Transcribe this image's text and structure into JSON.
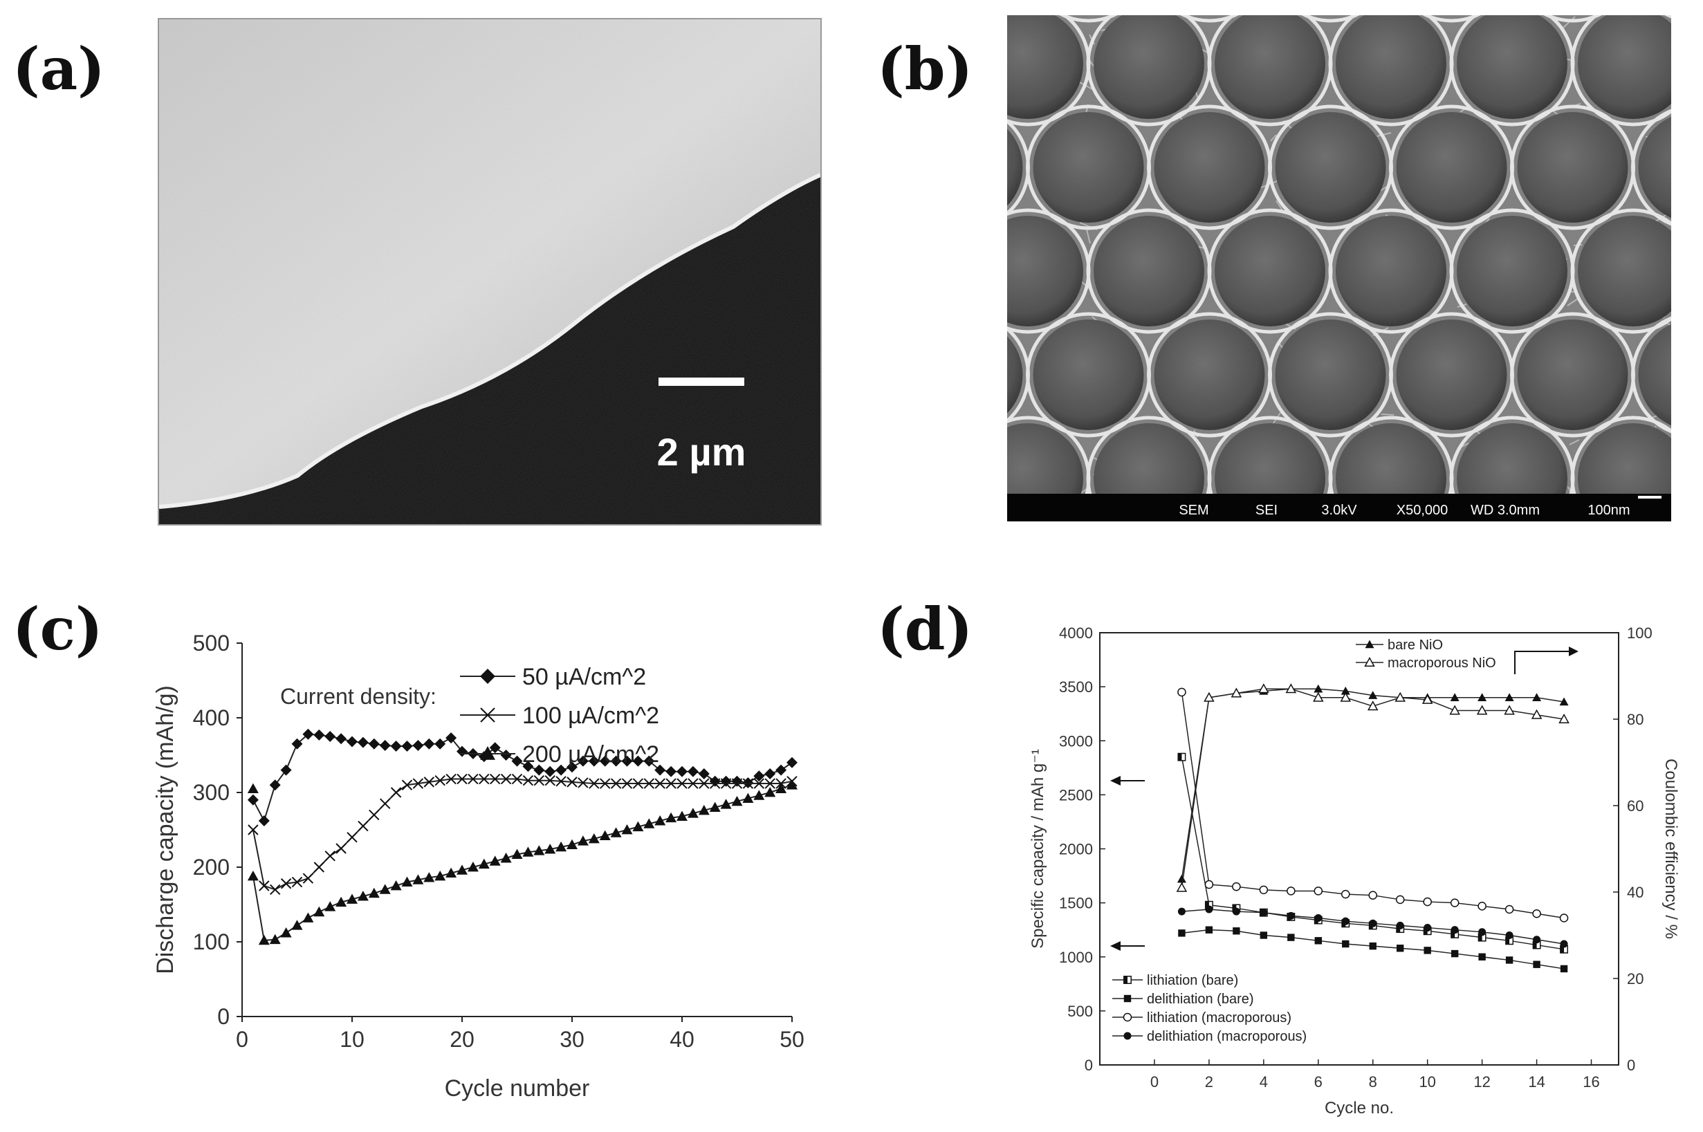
{
  "panels": {
    "a": {
      "label": "(a)",
      "scale_bar": "2 µm"
    },
    "b": {
      "label": "(b)",
      "info_bar": [
        "SEM",
        "SEI",
        "3.0kV",
        "X50,000",
        "WD 3.0mm",
        "100nm"
      ]
    },
    "c": {
      "label": "(c)"
    },
    "d": {
      "label": "(d)"
    }
  },
  "chart_data": [
    {
      "type": "line",
      "panel": "(c)",
      "title": "",
      "xlabel": "Cycle number",
      "ylabel": "Discharge capacity (mAh/g)",
      "xlim": [
        0,
        50
      ],
      "ylim": [
        0,
        500
      ],
      "xticks": [
        0,
        10,
        20,
        30,
        40,
        50
      ],
      "yticks": [
        0,
        100,
        200,
        300,
        400,
        500
      ],
      "grid": false,
      "legend_title": "Current density:",
      "legend_position": "top-right",
      "series": [
        {
          "name": "50 µA/cm^2",
          "marker": "diamond",
          "x": [
            1,
            2,
            3,
            4,
            5,
            6,
            7,
            8,
            9,
            10,
            11,
            12,
            13,
            14,
            15,
            16,
            17,
            18,
            19,
            20,
            21,
            22,
            23,
            24,
            25,
            26,
            27,
            28,
            29,
            30,
            31,
            32,
            33,
            34,
            35,
            36,
            37,
            38,
            39,
            40,
            41,
            42,
            43,
            44,
            45,
            46,
            47,
            48,
            49,
            50
          ],
          "y": [
            290,
            262,
            310,
            330,
            365,
            378,
            377,
            375,
            372,
            368,
            367,
            365,
            363,
            362,
            362,
            363,
            365,
            365,
            373,
            355,
            352,
            348,
            360,
            350,
            342,
            335,
            330,
            328,
            330,
            334,
            342,
            342,
            342,
            342,
            342,
            342,
            342,
            330,
            328,
            328,
            328,
            325,
            315,
            315,
            315,
            313,
            322,
            325,
            330,
            340
          ]
        },
        {
          "name": "100 µA/cm^2",
          "marker": "x",
          "x": [
            1,
            2,
            3,
            4,
            5,
            6,
            7,
            8,
            9,
            10,
            11,
            12,
            13,
            14,
            15,
            16,
            17,
            18,
            19,
            20,
            21,
            22,
            23,
            24,
            25,
            26,
            27,
            28,
            29,
            30,
            31,
            32,
            33,
            34,
            35,
            36,
            37,
            38,
            39,
            40,
            41,
            42,
            43,
            44,
            45,
            46,
            47,
            48,
            49,
            50
          ],
          "y": [
            250,
            175,
            170,
            178,
            180,
            185,
            200,
            215,
            225,
            240,
            255,
            270,
            285,
            300,
            310,
            312,
            314,
            316,
            318,
            318,
            318,
            318,
            318,
            318,
            318,
            316,
            316,
            316,
            315,
            314,
            313,
            312,
            312,
            312,
            312,
            312,
            312,
            312,
            312,
            312,
            312,
            312,
            312,
            312,
            312,
            312,
            312,
            312,
            312,
            315
          ]
        },
        {
          "name": "200 µA/cm^2",
          "marker": "triangle",
          "x": [
            1,
            2,
            3,
            4,
            5,
            6,
            7,
            8,
            9,
            10,
            11,
            12,
            13,
            14,
            15,
            16,
            17,
            18,
            19,
            20,
            21,
            22,
            23,
            24,
            25,
            26,
            27,
            28,
            29,
            30,
            31,
            32,
            33,
            34,
            35,
            36,
            37,
            38,
            39,
            40,
            41,
            42,
            43,
            44,
            45,
            46,
            47,
            48,
            49,
            50
          ],
          "y": [
            188,
            102,
            103,
            112,
            122,
            132,
            140,
            147,
            153,
            157,
            161,
            165,
            170,
            175,
            180,
            183,
            186,
            188,
            192,
            196,
            200,
            204,
            208,
            212,
            217,
            220,
            222,
            224,
            227,
            230,
            235,
            238,
            242,
            246,
            250,
            254,
            258,
            262,
            266,
            268,
            272,
            276,
            280,
            284,
            288,
            292,
            296,
            300,
            305,
            310
          ]
        },
        {
          "name": "",
          "marker": "triangle",
          "x": [
            1
          ],
          "y": [
            305
          ]
        }
      ]
    },
    {
      "type": "line",
      "panel": "(d)",
      "title": "",
      "xlabel": "Cycle no.",
      "ylabel": "Specific capacity / mAh g⁻¹",
      "y2label": "Coulombic efficiency / %",
      "xlim": [
        -2,
        17
      ],
      "ylim": [
        0,
        4000
      ],
      "y2lim": [
        0,
        100
      ],
      "xticks": [
        0,
        2,
        4,
        6,
        8,
        10,
        12,
        14,
        16
      ],
      "yticks": [
        0,
        500,
        1000,
        1500,
        2000,
        2500,
        3000,
        3500,
        4000
      ],
      "y2ticks": [
        0,
        20,
        40,
        60,
        80,
        100
      ],
      "grid": false,
      "legend_top_position": "top-center",
      "legend_bottom_position": "bottom-left",
      "series": [
        {
          "name": "bare NiO",
          "axis": "right",
          "marker": "filled-triangle",
          "x": [
            1,
            2,
            3,
            4,
            5,
            6,
            7,
            8,
            9,
            10,
            11,
            12,
            13,
            14,
            15
          ],
          "y": [
            43,
            85,
            86,
            86.5,
            87,
            87,
            86.5,
            85.5,
            85,
            85,
            85,
            85,
            85,
            85,
            84
          ]
        },
        {
          "name": "macroporous NiO",
          "axis": "right",
          "marker": "open-triangle",
          "x": [
            1,
            2,
            3,
            4,
            5,
            6,
            7,
            8,
            9,
            10,
            11,
            12,
            13,
            14,
            15
          ],
          "y": [
            41,
            85,
            86,
            87,
            87,
            85,
            85,
            83,
            85,
            84.5,
            82,
            82,
            82,
            81,
            80
          ]
        },
        {
          "name": "lithiation (bare)",
          "axis": "left",
          "marker": "half-square",
          "x": [
            1,
            2,
            3,
            4,
            5,
            6,
            7,
            8,
            9,
            10,
            11,
            12,
            13,
            14,
            15
          ],
          "y": [
            2850,
            1480,
            1450,
            1410,
            1370,
            1340,
            1310,
            1290,
            1260,
            1240,
            1210,
            1180,
            1150,
            1110,
            1070
          ]
        },
        {
          "name": "delithiation (bare)",
          "axis": "left",
          "marker": "filled-square",
          "x": [
            1,
            2,
            3,
            4,
            5,
            6,
            7,
            8,
            9,
            10,
            11,
            12,
            13,
            14,
            15
          ],
          "y": [
            1220,
            1250,
            1240,
            1200,
            1180,
            1150,
            1120,
            1100,
            1080,
            1060,
            1030,
            1000,
            970,
            930,
            890
          ]
        },
        {
          "name": "lithiation (macroporous)",
          "axis": "left",
          "marker": "open-circle",
          "x": [
            1,
            2,
            3,
            4,
            5,
            6,
            7,
            8,
            9,
            10,
            11,
            12,
            13,
            14,
            15
          ],
          "y": [
            3450,
            1670,
            1650,
            1620,
            1610,
            1610,
            1580,
            1570,
            1530,
            1510,
            1500,
            1470,
            1440,
            1400,
            1360
          ]
        },
        {
          "name": "delithiation (macroporous)",
          "axis": "left",
          "marker": "filled-circle",
          "x": [
            1,
            2,
            3,
            4,
            5,
            6,
            7,
            8,
            9,
            10,
            11,
            12,
            13,
            14,
            15
          ],
          "y": [
            1420,
            1440,
            1420,
            1410,
            1380,
            1360,
            1330,
            1310,
            1290,
            1270,
            1250,
            1230,
            1200,
            1160,
            1120
          ]
        }
      ]
    }
  ]
}
